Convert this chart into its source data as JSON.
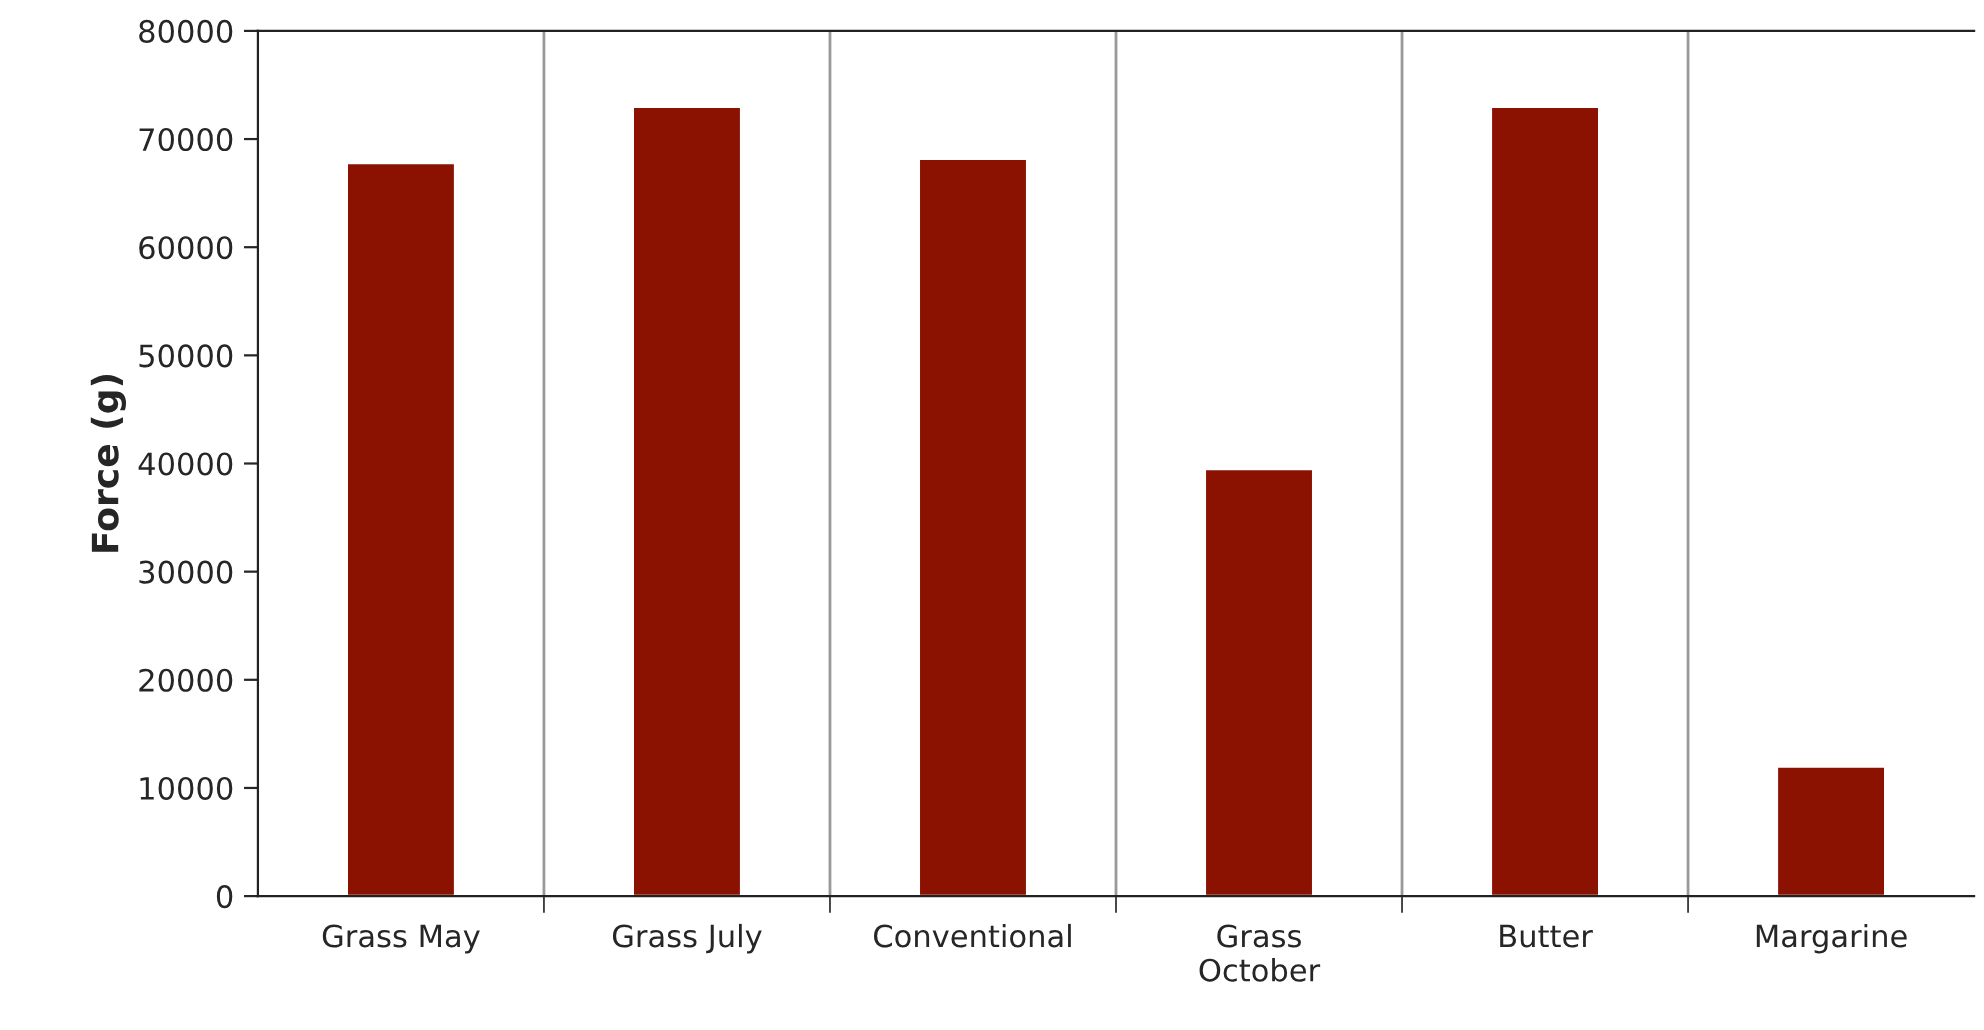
{
  "chart_data": {
    "type": "bar",
    "ylabel": "Force (g)",
    "categories": [
      "Grass May",
      "Grass July",
      "Conventional",
      "Grass October",
      "Butter",
      "Margarine"
    ],
    "values": [
      67800,
      73000,
      68200,
      39500,
      73000,
      12000
    ],
    "color": "#8b1100",
    "ylim": [
      0,
      80000
    ],
    "yticks": [
      0,
      10000,
      20000,
      30000,
      40000,
      50000,
      60000,
      70000,
      80000
    ],
    "grid": "x"
  }
}
